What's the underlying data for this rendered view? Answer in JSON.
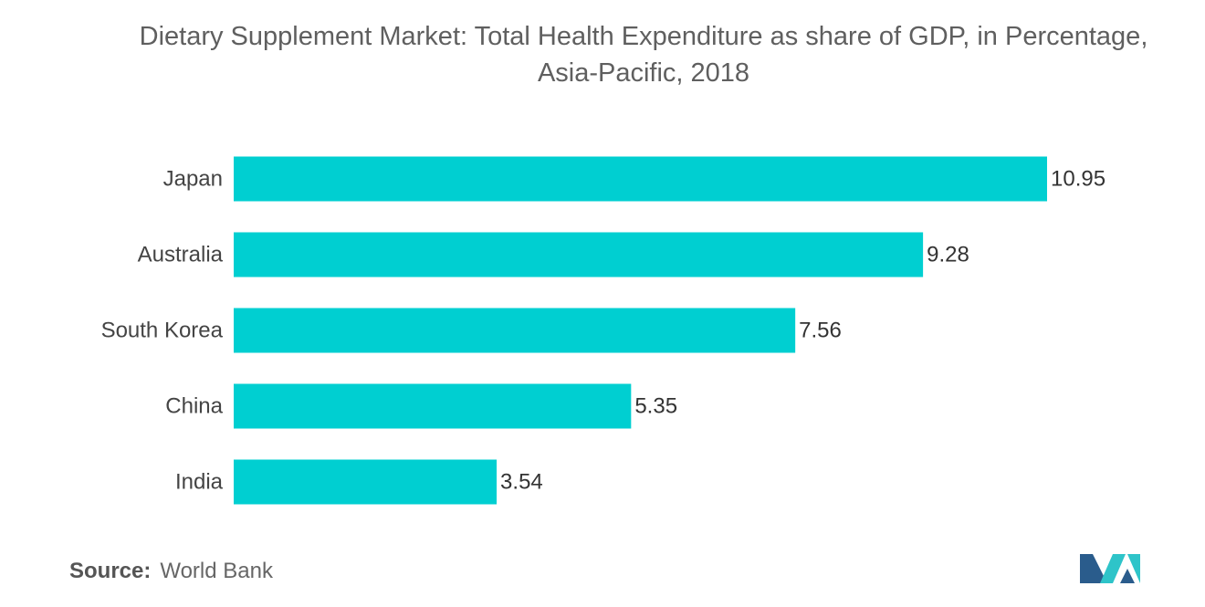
{
  "title_line1": "Dietary Supplement Market: Total Health Expenditure as share of GDP, in Percentage,",
  "title_line2": "Asia-Pacific, 2018",
  "source": {
    "label": "Source:",
    "value": "World Bank"
  },
  "colors": {
    "bar": "#00cfd1",
    "logo_dark": "#2a5c8c",
    "logo_light": "#2ec4c9"
  },
  "chart_data": {
    "type": "bar",
    "orientation": "horizontal",
    "title": "Dietary Supplement Market: Total Health Expenditure as share of GDP, in Percentage, Asia-Pacific, 2018",
    "categories": [
      "Japan",
      "Australia",
      "South Korea",
      "China",
      "India"
    ],
    "values": [
      10.95,
      9.28,
      7.56,
      5.35,
      3.54
    ],
    "data_labels": [
      "10.95",
      "9.28",
      "7.56",
      "5.35",
      "3.54"
    ],
    "xlabel": "",
    "ylabel": "",
    "xlim": [
      0,
      10.95
    ],
    "grid": false,
    "legend": "none"
  }
}
